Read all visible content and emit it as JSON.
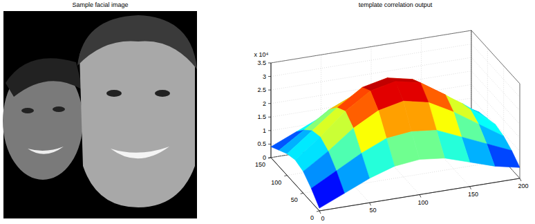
{
  "image": {
    "title": "Sample facial image"
  },
  "chart_data": {
    "type": "surface",
    "title": "template correlation output",
    "annotations": [
      "x 10⁴"
    ],
    "x": [
      0,
      25,
      50,
      75,
      100,
      125,
      150,
      175,
      200
    ],
    "y": [
      0,
      25,
      50,
      75,
      100,
      125,
      150
    ],
    "z": [
      [
        0.1,
        0.5,
        0.9,
        1.2,
        1.3,
        1.2,
        0.9,
        0.6,
        0.4
      ],
      [
        0.5,
        1.0,
        1.5,
        1.9,
        2.0,
        1.9,
        1.5,
        1.1,
        0.7
      ],
      [
        0.8,
        1.4,
        2.1,
        2.6,
        2.8,
        2.6,
        2.1,
        1.5,
        0.9
      ],
      [
        0.9,
        1.6,
        2.4,
        3.0,
        3.2,
        3.0,
        2.4,
        1.7,
        1.0
      ],
      [
        0.8,
        1.5,
        2.2,
        2.8,
        3.0,
        2.8,
        2.2,
        1.6,
        0.9
      ],
      [
        0.6,
        1.2,
        1.8,
        2.2,
        2.4,
        2.2,
        1.8,
        1.3,
        0.8
      ],
      [
        0.4,
        0.8,
        1.2,
        1.5,
        1.6,
        1.5,
        1.2,
        0.9,
        0.6
      ]
    ],
    "xlim": [
      0,
      200
    ],
    "xticks": [
      0,
      50,
      100,
      150,
      200
    ],
    "ylim": [
      0,
      150
    ],
    "yticks": [
      0,
      50,
      100,
      150
    ],
    "zlim": [
      0,
      3.5
    ],
    "zticks": [
      0,
      0.5,
      1,
      1.5,
      2,
      2.5,
      3,
      3.5
    ],
    "grid": true
  }
}
